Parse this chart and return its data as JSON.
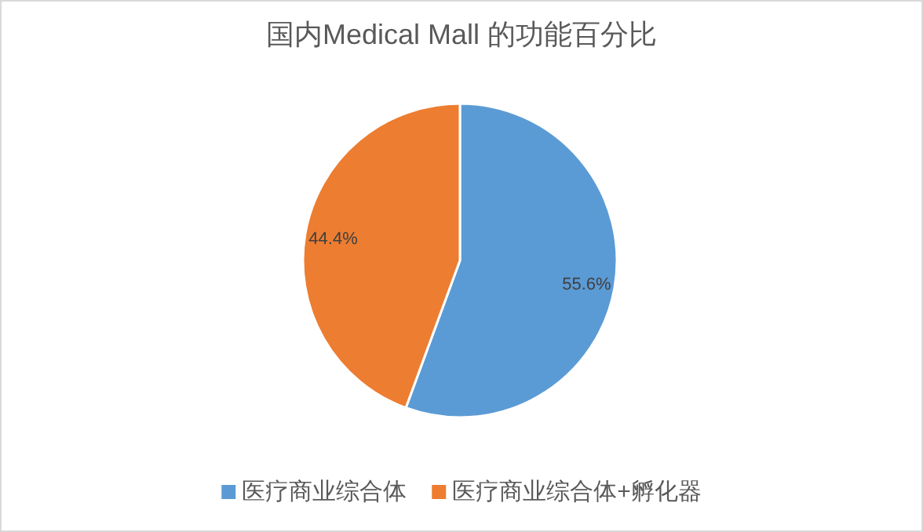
{
  "chart_data": {
    "type": "pie",
    "title": "国内Medical Mall 的功能百分比",
    "categories": [
      "医疗商业综合体",
      "医疗商业综合体+孵化器"
    ],
    "values": [
      55.6,
      44.4
    ],
    "colors": [
      "#5b9bd5",
      "#ed7d31"
    ],
    "value_labels": [
      "55.6%",
      "44.4%"
    ],
    "legend": "bottom"
  }
}
